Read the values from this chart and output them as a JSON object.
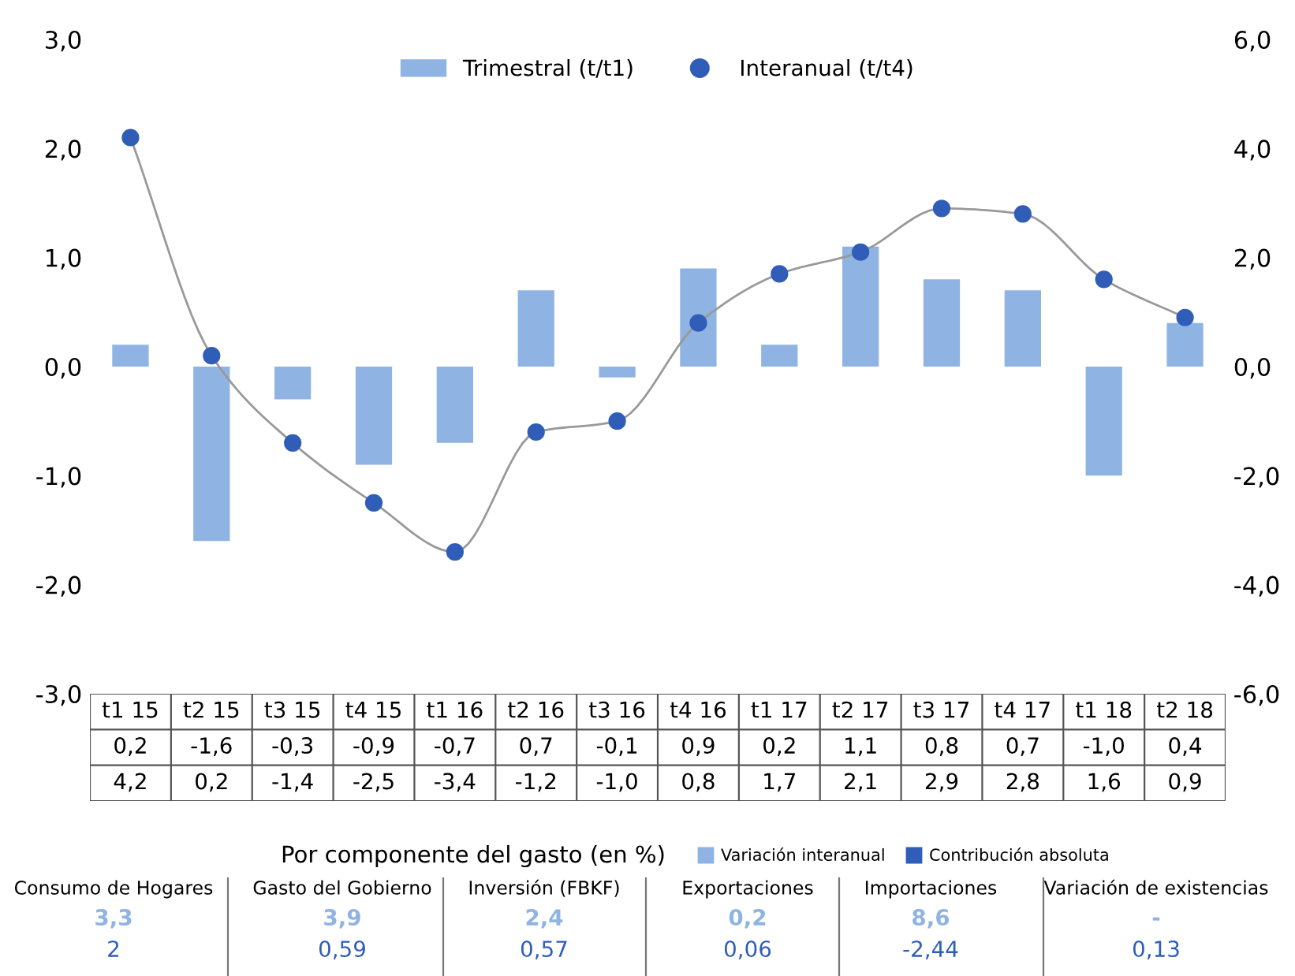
{
  "chart_data": [
    {
      "type": "bar",
      "categories": [
        "t1 15",
        "t2 15",
        "t3 15",
        "t4 15",
        "t1 16",
        "t2 16",
        "t3 16",
        "t4 16",
        "t1 17",
        "t2 17",
        "t3 17",
        "t4 17",
        "t1 18",
        "t2 18"
      ],
      "series": [
        {
          "name": "Trimestral (t/t1)",
          "type": "bar",
          "color": "#8fb4e3",
          "values": [
            0.2,
            -1.6,
            -0.3,
            -0.9,
            -0.7,
            0.7,
            -0.1,
            0.9,
            0.2,
            1.1,
            0.8,
            0.7,
            -1.0,
            0.4
          ],
          "value_labels": [
            "0,2",
            "-1,6",
            "-0,3",
            "-0,9",
            "-0,7",
            "0,7",
            "-0,1",
            "0,9",
            "0,2",
            "1,1",
            "0,8",
            "0,7",
            "-1,0",
            "0,4"
          ]
        },
        {
          "name": "Interanual (t/t4)",
          "type": "line",
          "axis": "y2",
          "color": "#2f5db8",
          "marker": "circle",
          "values": [
            4.2,
            0.2,
            -1.4,
            -2.5,
            -3.4,
            -1.2,
            -1.0,
            0.8,
            1.7,
            2.1,
            2.9,
            2.8,
            1.6,
            0.9
          ],
          "value_labels": [
            "4,2",
            "0,2",
            "-1,4",
            "-2,5",
            "-3,4",
            "-1,2",
            "-1,0",
            "0,8",
            "1,7",
            "2,1",
            "2,9",
            "2,8",
            "1,6",
            "0,9"
          ]
        }
      ],
      "ylim": [
        -3,
        3
      ],
      "yticks": [
        {
          "value": -3,
          "label": "-3,0"
        },
        {
          "value": -2,
          "label": "-2,0"
        },
        {
          "value": -1,
          "label": "-1,0"
        },
        {
          "value": 0,
          "label": "0,0"
        },
        {
          "value": 1,
          "label": "1,0"
        },
        {
          "value": 2,
          "label": "2,0"
        },
        {
          "value": 3,
          "label": "3,0"
        }
      ],
      "y2lim": [
        -6,
        6
      ],
      "y2ticks": [
        {
          "value": -6,
          "label": "-6,0"
        },
        {
          "value": -4,
          "label": "-4,0"
        },
        {
          "value": -2,
          "label": "-2,0"
        },
        {
          "value": 0,
          "label": "0,0"
        },
        {
          "value": 2,
          "label": "2,0"
        },
        {
          "value": 4,
          "label": "4,0"
        },
        {
          "value": 6,
          "label": "6,0"
        }
      ],
      "legend": "top",
      "grid": false
    },
    {
      "type": "other",
      "title": "Por componente del gasto (en %)",
      "categories": [
        "Consumo de Hogares",
        "Gasto del Gobierno",
        "Inversión (FBKF)",
        "Exportaciones",
        "Importaciones",
        "Variación de existencias"
      ],
      "series": [
        {
          "name": "Variación interanual",
          "color": "#8fb4e3",
          "values": [
            3.3,
            3.9,
            2.4,
            0.2,
            8.6,
            null
          ],
          "value_labels": [
            "3,3",
            "3,9",
            "2,4",
            "0,2",
            "8,6",
            "-"
          ]
        },
        {
          "name": "Contribución absoluta",
          "color": "#2f5db8",
          "values": [
            2,
            0.59,
            0.57,
            0.06,
            -2.44,
            0.13
          ],
          "value_labels": [
            "2",
            "0,59",
            "0,57",
            "0,06",
            "-2,44",
            "0,13"
          ]
        }
      ],
      "legend": "top right"
    }
  ]
}
